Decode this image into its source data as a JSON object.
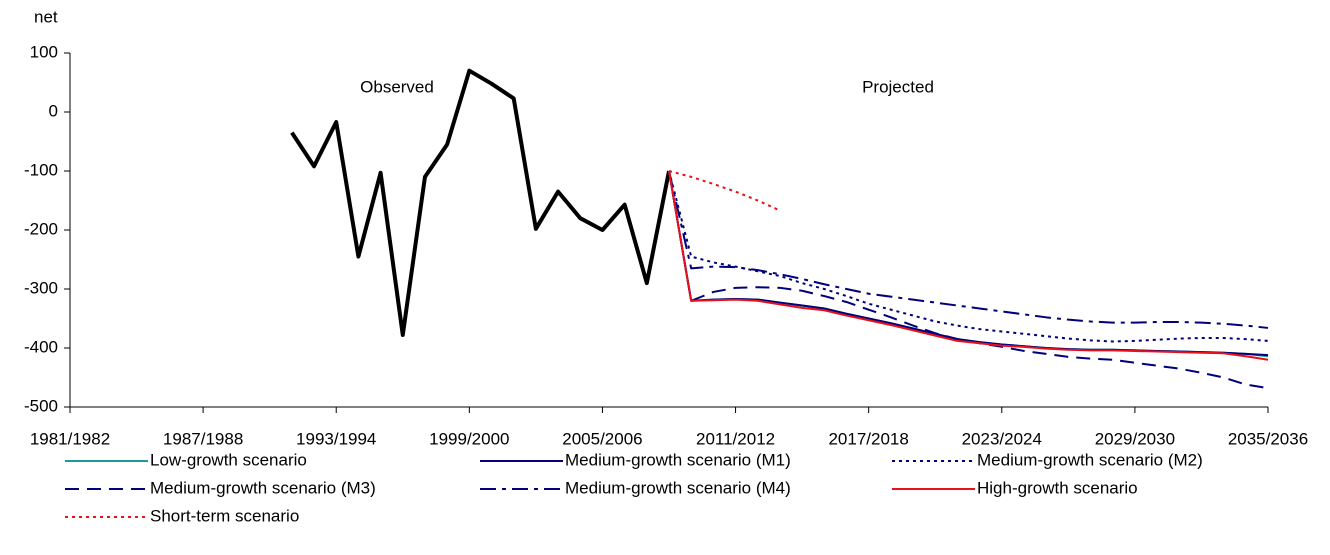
{
  "chart_data": {
    "type": "line",
    "y_label": "net",
    "annotations": [
      "Observed",
      "Projected"
    ],
    "categories": [
      "1981/1982",
      null,
      null,
      null,
      null,
      null,
      "1987/1988",
      null,
      null,
      null,
      null,
      null,
      "1993/1994",
      null,
      null,
      null,
      null,
      null,
      "1999/2000",
      null,
      null,
      null,
      null,
      null,
      "2005/2006",
      null,
      null,
      null,
      null,
      null,
      "2011/2012",
      null,
      null,
      null,
      null,
      null,
      "2017/2018",
      null,
      null,
      null,
      null,
      null,
      "2023/2024",
      null,
      null,
      null,
      null,
      null,
      "2029/2030",
      null,
      null,
      null,
      null,
      null,
      "2035/2036"
    ],
    "ylim": [
      -500,
      100
    ],
    "yticks": [
      100,
      0,
      -100,
      -200,
      -300,
      -400,
      -500
    ],
    "series": [
      {
        "color": "#000000",
        "dash": "solid",
        "width": 4,
        "values": [
          null,
          null,
          null,
          null,
          null,
          null,
          null,
          null,
          null,
          null,
          -35,
          -92,
          -17,
          -245,
          -103,
          -378,
          -110,
          -55,
          70,
          48,
          23,
          -198,
          -135,
          -180,
          -200,
          -157,
          -290,
          -100,
          null,
          null,
          null,
          null,
          null,
          null,
          null,
          null,
          null,
          null,
          null,
          null,
          null,
          null,
          null,
          null,
          null,
          null,
          null,
          null,
          null,
          null,
          null,
          null,
          null,
          null,
          null
        ]
      },
      {
        "name": "Low-growth scenario",
        "color": "#1a9a9a",
        "dash": "solid",
        "width": 2,
        "values": [
          null,
          null,
          null,
          null,
          null,
          null,
          null,
          null,
          null,
          null,
          null,
          null,
          null,
          null,
          null,
          null,
          null,
          null,
          null,
          null,
          null,
          null,
          null,
          null,
          null,
          null,
          null,
          -100,
          -320,
          -318,
          -317,
          -318,
          -323,
          -328,
          -333,
          -342,
          -350,
          -358,
          -367,
          -376,
          -385,
          -390,
          -394,
          -397,
          -400,
          -402,
          -403,
          -403,
          -404,
          -405,
          -406,
          -407,
          -408,
          -410,
          -414
        ]
      },
      {
        "name": "Medium-growth scenario (M1)",
        "color": "#00007a",
        "dash": "solid",
        "width": 2,
        "values": [
          null,
          null,
          null,
          null,
          null,
          null,
          null,
          null,
          null,
          null,
          null,
          null,
          null,
          null,
          null,
          null,
          null,
          null,
          null,
          null,
          null,
          null,
          null,
          null,
          null,
          null,
          null,
          -100,
          -320,
          -318,
          -317,
          -318,
          -323,
          -328,
          -333,
          -342,
          -350,
          -358,
          -367,
          -376,
          -385,
          -390,
          -394,
          -397,
          -400,
          -402,
          -403,
          -403,
          -404,
          -405,
          -406,
          -407,
          -408,
          -410,
          -412
        ]
      },
      {
        "name": "Medium-growth scenario (M2)",
        "color": "#00007a",
        "dash": "dotted",
        "width": 2,
        "values": [
          null,
          null,
          null,
          null,
          null,
          null,
          null,
          null,
          null,
          null,
          null,
          null,
          null,
          null,
          null,
          null,
          null,
          null,
          null,
          null,
          null,
          null,
          null,
          null,
          null,
          null,
          null,
          -100,
          -245,
          -255,
          -262,
          -270,
          -278,
          -290,
          -300,
          -312,
          -325,
          -335,
          -345,
          -355,
          -362,
          -368,
          -372,
          -376,
          -380,
          -384,
          -387,
          -389,
          -388,
          -386,
          -384,
          -383,
          -383,
          -385,
          -388
        ]
      },
      {
        "name": "Medium-growth scenario (M3)",
        "color": "#00007a",
        "dash": "dashed",
        "width": 2,
        "values": [
          null,
          null,
          null,
          null,
          null,
          null,
          null,
          null,
          null,
          null,
          null,
          null,
          null,
          null,
          null,
          null,
          null,
          null,
          null,
          null,
          null,
          null,
          null,
          null,
          null,
          null,
          null,
          -100,
          -320,
          -305,
          -298,
          -297,
          -298,
          -303,
          -312,
          -322,
          -335,
          -348,
          -362,
          -375,
          -385,
          -392,
          -398,
          -405,
          -410,
          -415,
          -418,
          -420,
          -425,
          -430,
          -435,
          -442,
          -450,
          -462,
          -468
        ]
      },
      {
        "name": "Medium-growth scenario (M4)",
        "color": "#00007a",
        "dash": "dashdot",
        "width": 2,
        "values": [
          null,
          null,
          null,
          null,
          null,
          null,
          null,
          null,
          null,
          null,
          null,
          null,
          null,
          null,
          null,
          null,
          null,
          null,
          null,
          null,
          null,
          null,
          null,
          null,
          null,
          null,
          null,
          -100,
          -265,
          -262,
          -263,
          -268,
          -275,
          -283,
          -292,
          -300,
          -308,
          -313,
          -318,
          -323,
          -328,
          -333,
          -338,
          -343,
          -348,
          -352,
          -355,
          -357,
          -357,
          -356,
          -356,
          -357,
          -359,
          -362,
          -366
        ]
      },
      {
        "name": "High-growth scenario",
        "color": "#e8101a",
        "dash": "solid",
        "width": 2,
        "values": [
          null,
          null,
          null,
          null,
          null,
          null,
          null,
          null,
          null,
          null,
          null,
          null,
          null,
          null,
          null,
          null,
          null,
          null,
          null,
          null,
          null,
          null,
          null,
          null,
          null,
          null,
          null,
          -100,
          -320,
          -319,
          -318,
          -320,
          -326,
          -332,
          -336,
          -345,
          -353,
          -361,
          -370,
          -379,
          -388,
          -392,
          -396,
          -398,
          -401,
          -403,
          -404,
          -404,
          -405,
          -406,
          -407,
          -408,
          -409,
          -414,
          -420
        ]
      },
      {
        "name": "Short-term scenario",
        "color": "#e8101a",
        "dash": "dotted",
        "width": 2,
        "values": [
          null,
          null,
          null,
          null,
          null,
          null,
          null,
          null,
          null,
          null,
          null,
          null,
          null,
          null,
          null,
          null,
          null,
          null,
          null,
          null,
          null,
          null,
          null,
          null,
          null,
          null,
          null,
          -100,
          -110,
          -122,
          -135,
          -150,
          -167,
          null,
          null,
          null,
          null,
          null,
          null,
          null,
          null,
          null,
          null,
          null,
          null,
          null,
          null,
          null,
          null,
          null,
          null,
          null,
          null,
          null,
          null
        ]
      }
    ]
  }
}
